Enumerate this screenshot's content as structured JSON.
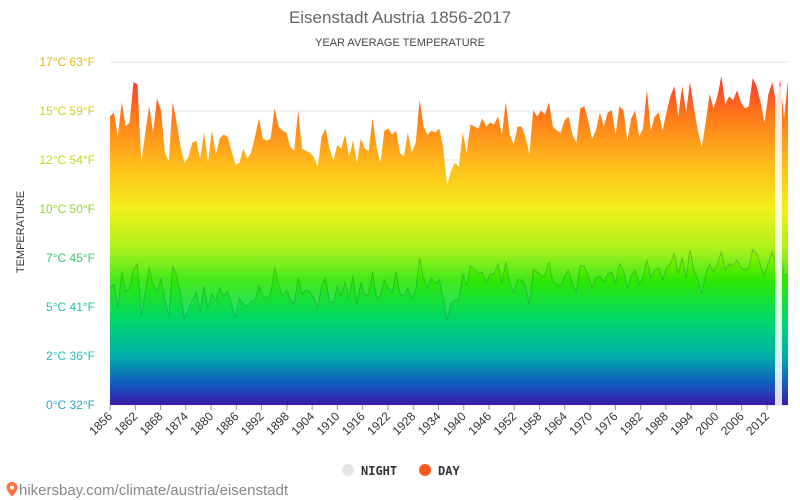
{
  "chart_data": {
    "type": "area",
    "title": "Eisenstadt Austria 1856-2017",
    "subtitle": "YEAR AVERAGE TEMPERATURE",
    "ylabel": "TEMPERATURE",
    "xlabel": "",
    "y_unit": "°C",
    "ylim": [
      0,
      17
    ],
    "y_ticks": [
      {
        "value": 0,
        "label": "0°C 32°F",
        "color": "#2aa8c8"
      },
      {
        "value": 2.43,
        "label": "2°C 36°F",
        "color": "#27b9c4"
      },
      {
        "value": 4.86,
        "label": "5°C 41°F",
        "color": "#22c3a6"
      },
      {
        "value": 7.29,
        "label": "7°C 45°F",
        "color": "#3cc86b"
      },
      {
        "value": 9.71,
        "label": "10°C 50°F",
        "color": "#8bd632"
      },
      {
        "value": 12.14,
        "label": "12°C 54°F",
        "color": "#c1d91c"
      },
      {
        "value": 14.57,
        "label": "15°C 59°F",
        "color": "#c4d21c"
      },
      {
        "value": 17.0,
        "label": "17°C 63°F",
        "color": "#e7b514"
      }
    ],
    "x_ticks": [
      "1856",
      "1862",
      "1868",
      "1874",
      "1880",
      "1886",
      "1892",
      "1898",
      "1904",
      "1910",
      "1916",
      "1922",
      "1928",
      "1934",
      "1940",
      "1946",
      "1952",
      "1958",
      "1964",
      "1970",
      "1976",
      "1982",
      "1988",
      "1994",
      "2000",
      "2006",
      "2012"
    ],
    "x_start": 1856,
    "x_end": 2017,
    "grid": true,
    "legend_position": "bottom-center",
    "series": [
      {
        "name": "DAY",
        "color": "#ff5722",
        "values": [
          14.3,
          14.5,
          13.3,
          15.0,
          13.8,
          14.0,
          16.0,
          15.9,
          12.0,
          13.5,
          14.8,
          13.5,
          15.2,
          14.6,
          12.5,
          12.1,
          15.0,
          14.0,
          12.8,
          12.0,
          12.3,
          13.0,
          13.1,
          12.2,
          13.5,
          12.0,
          13.6,
          12.4,
          13.2,
          13.4,
          13.3,
          12.6,
          11.9,
          12.0,
          12.7,
          12.2,
          12.5,
          13.3,
          14.2,
          13.2,
          13.1,
          13.2,
          14.7,
          13.8,
          13.6,
          13.5,
          12.8,
          12.6,
          14.6,
          12.7,
          12.6,
          12.5,
          12.3,
          11.8,
          13.3,
          13.7,
          12.7,
          12.1,
          12.9,
          12.7,
          13.4,
          12.3,
          13.1,
          12.0,
          13.2,
          12.7,
          12.6,
          14.2,
          12.8,
          12.0,
          13.6,
          13.7,
          13.4,
          13.6,
          12.5,
          12.3,
          13.5,
          12.5,
          13.0,
          15.1,
          13.8,
          13.4,
          13.6,
          13.5,
          13.7,
          12.8,
          10.9,
          11.6,
          12.0,
          11.8,
          13.5,
          12.5,
          13.9,
          13.8,
          13.7,
          14.2,
          13.8,
          14.0,
          13.9,
          14.3,
          13.4,
          15.0,
          13.4,
          12.9,
          13.8,
          13.8,
          13.3,
          12.4,
          14.6,
          14.3,
          14.6,
          14.4,
          15.0,
          13.8,
          13.6,
          13.5,
          14.1,
          14.3,
          13.4,
          13.0,
          14.7,
          14.8,
          14.1,
          13.2,
          13.6,
          14.5,
          13.8,
          14.5,
          14.6,
          13.4,
          14.8,
          14.6,
          13.1,
          14.2,
          14.6,
          13.3,
          13.7,
          15.6,
          13.6,
          14.3,
          14.5,
          13.6,
          14.5,
          15.3,
          15.8,
          14.3,
          15.8,
          14.5,
          16.0,
          14.7,
          13.6,
          12.8,
          14.0,
          15.4,
          14.7,
          15.3,
          16.3,
          14.9,
          15.3,
          15.1,
          15.6,
          15.0,
          14.7,
          14.8,
          16.2,
          15.8,
          15.0,
          14.0,
          15.4,
          16.0,
          14.9,
          16.1,
          14.2,
          16.1
        ]
      },
      {
        "name": "NIGHT",
        "color": "#dddddd",
        "values": [
          5.8,
          6.0,
          4.8,
          6.6,
          5.6,
          5.8,
          6.7,
          7.0,
          4.4,
          5.6,
          6.8,
          6.0,
          5.6,
          6.3,
          5.2,
          4.4,
          6.9,
          6.4,
          5.5,
          4.3,
          4.7,
          5.2,
          5.6,
          4.6,
          5.9,
          4.8,
          5.5,
          5.2,
          5.8,
          5.4,
          5.6,
          5.0,
          4.3,
          5.3,
          5.0,
          4.9,
          5.1,
          5.2,
          5.9,
          5.4,
          5.3,
          5.5,
          6.8,
          6.0,
          5.4,
          5.7,
          5.3,
          5.0,
          6.3,
          5.5,
          5.7,
          5.6,
          5.3,
          4.8,
          5.9,
          6.3,
          5.1,
          5.1,
          5.9,
          5.4,
          6.1,
          5.3,
          6.4,
          5.0,
          6.1,
          5.4,
          5.5,
          6.6,
          5.3,
          5.4,
          6.2,
          5.8,
          5.6,
          6.6,
          5.5,
          5.4,
          5.8,
          5.3,
          5.7,
          7.3,
          6.3,
          5.8,
          6.3,
          6.0,
          6.2,
          5.3,
          4.2,
          5.0,
          5.2,
          5.2,
          6.5,
          5.9,
          6.9,
          6.7,
          6.5,
          6.6,
          6.0,
          6.5,
          6.5,
          7.0,
          6.0,
          7.1,
          6.0,
          5.6,
          6.2,
          6.2,
          5.9,
          5.0,
          6.7,
          6.6,
          6.4,
          6.4,
          7.1,
          6.1,
          6.0,
          5.9,
          6.4,
          6.7,
          6.0,
          5.6,
          6.9,
          6.9,
          6.4,
          5.8,
          6.3,
          6.4,
          6.1,
          6.5,
          6.6,
          6.0,
          7.0,
          6.7,
          5.8,
          6.4,
          6.7,
          6.0,
          6.3,
          7.2,
          6.3,
          6.7,
          6.8,
          6.2,
          6.8,
          7.0,
          7.5,
          6.5,
          7.3,
          6.3,
          7.7,
          6.7,
          6.2,
          5.5,
          6.5,
          7.0,
          6.6,
          7.0,
          7.6,
          6.7,
          7.0,
          6.9,
          7.2,
          6.8,
          6.7,
          6.8,
          7.7,
          7.5,
          6.9,
          6.4,
          7.1,
          7.6,
          6.8,
          7.6,
          6.4,
          6.5
        ]
      }
    ]
  },
  "legend": {
    "night_label": "NIGHT",
    "day_label": "DAY",
    "night_color": "#e5e5e5",
    "day_color": "#ff5722"
  },
  "source_text": "hikersbay.com/climate/austria/eisenstadt"
}
